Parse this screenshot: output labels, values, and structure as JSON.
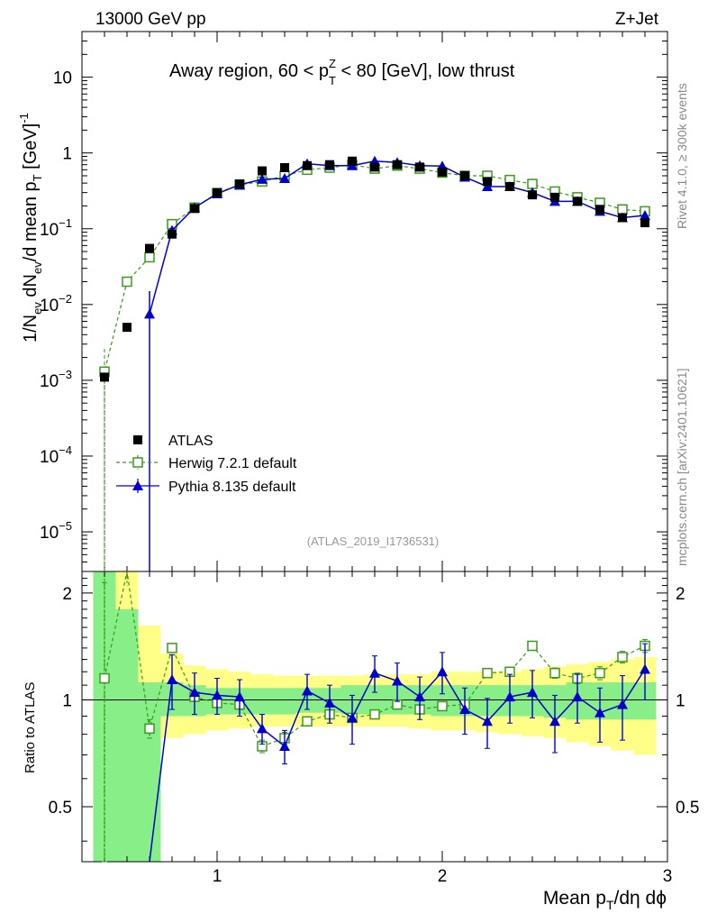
{
  "header": {
    "left": "13000 GeV pp",
    "right": "Z+Jet"
  },
  "side_labels": {
    "rivet": "Rivet 4.1.0, ≥ 300k events",
    "mcplots": "mcplots.cern.ch [arXiv:2401.10621]"
  },
  "chart_data": {
    "type": "scatter",
    "title_parts": {
      "a": "Away region, 60 < p",
      "sup": "Z",
      "sub": "T",
      "b": " < 80 [GeV], low thrust"
    },
    "analysis_tag": "(ATLAS_2019_I1736531)",
    "xlabel_parts": {
      "a": "Mean p",
      "sub": "T",
      "b": "/dη dϕ"
    },
    "ylabel_parts": {
      "a": "1/N",
      "sub1": "ev",
      "b": " dN",
      "sub2": "ev",
      "c": "/d mean p",
      "sub3": "T",
      "d": " [GeV]",
      "sup": "-1"
    },
    "ratio_ylabel": "Ratio to ATLAS",
    "xlim": [
      0.4,
      3.0
    ],
    "ylim": [
      3e-06,
      40
    ],
    "ratio_ylim": [
      0.35,
      2.3
    ],
    "x_ticks": [
      1,
      2,
      3
    ],
    "y_ticks": [
      {
        "v": 10,
        "m": "10",
        "e": ""
      },
      {
        "v": 1,
        "m": "1",
        "e": ""
      },
      {
        "v": 0.1,
        "m": "10",
        "e": "−1"
      },
      {
        "v": 0.01,
        "m": "10",
        "e": "−2"
      },
      {
        "v": 0.001,
        "m": "10",
        "e": "−3"
      },
      {
        "v": 0.0001,
        "m": "10",
        "e": "−4"
      },
      {
        "v": 1e-05,
        "m": "10",
        "e": "−5"
      }
    ],
    "ratio_ticks": [
      {
        "v": 0.5,
        "l": "0.5"
      },
      {
        "v": 1,
        "l": "1"
      },
      {
        "v": 2,
        "l": "2"
      }
    ],
    "x": [
      0.5,
      0.6,
      0.7,
      0.8,
      0.9,
      1.0,
      1.1,
      1.2,
      1.3,
      1.4,
      1.5,
      1.6,
      1.7,
      1.8,
      1.9,
      2.0,
      2.1,
      2.2,
      2.3,
      2.4,
      2.5,
      2.6,
      2.7,
      2.8,
      2.9
    ],
    "band_inner": [
      2.3,
      1.8,
      1.12,
      1.12,
      1.1,
      1.08,
      1.08,
      1.08,
      1.08,
      1.08,
      1.08,
      1.1,
      1.1,
      1.1,
      1.1,
      1.1,
      1.1,
      1.1,
      1.1,
      1.1,
      1.1,
      1.12,
      1.12,
      1.12,
      1.12
    ],
    "band_outer": [
      2.3,
      2.3,
      1.62,
      1.35,
      1.25,
      1.22,
      1.2,
      1.18,
      1.17,
      1.17,
      1.17,
      1.17,
      1.18,
      1.18,
      1.18,
      1.2,
      1.2,
      1.2,
      1.2,
      1.22,
      1.24,
      1.26,
      1.28,
      1.3,
      1.32
    ],
    "band_inner_low": [
      0.35,
      0.35,
      0.35,
      0.9,
      0.9,
      0.91,
      0.91,
      0.91,
      0.91,
      0.92,
      0.92,
      0.91,
      0.91,
      0.91,
      0.91,
      0.9,
      0.9,
      0.9,
      0.9,
      0.9,
      0.89,
      0.88,
      0.88,
      0.88,
      0.88
    ],
    "band_outer_low": [
      0.35,
      0.35,
      0.35,
      0.78,
      0.8,
      0.82,
      0.83,
      0.84,
      0.84,
      0.84,
      0.84,
      0.84,
      0.84,
      0.84,
      0.83,
      0.82,
      0.82,
      0.81,
      0.8,
      0.79,
      0.78,
      0.76,
      0.74,
      0.72,
      0.7
    ],
    "series": [
      {
        "name": "ATLAS",
        "color": "#000000",
        "marker": "square",
        "values": [
          0.0011,
          0.005,
          0.055,
          0.085,
          0.185,
          0.3,
          0.39,
          0.58,
          0.64,
          0.68,
          0.7,
          0.78,
          0.65,
          0.7,
          0.65,
          0.56,
          0.5,
          0.42,
          0.36,
          0.28,
          0.26,
          0.23,
          0.18,
          0.14,
          0.12
        ]
      },
      {
        "name": "Herwig 7.2.1 default",
        "color": "#3a9a1a",
        "marker": "open-square",
        "values": [
          0.0013,
          0.02,
          0.042,
          0.115,
          0.19,
          0.295,
          0.38,
          0.42,
          0.5,
          0.6,
          0.64,
          0.7,
          0.62,
          0.68,
          0.62,
          0.55,
          0.5,
          0.5,
          0.44,
          0.39,
          0.31,
          0.26,
          0.22,
          0.18,
          0.17
        ],
        "ratio": [
          1.15,
          2.3,
          0.83,
          1.4,
          1.02,
          0.98,
          0.97,
          0.74,
          0.78,
          0.87,
          0.91,
          0.89,
          0.91,
          0.97,
          0.94,
          0.96,
          0.97,
          1.19,
          1.2,
          1.42,
          1.19,
          1.15,
          1.19,
          1.32,
          1.42
        ],
        "ratio_err": [
          0.99,
          0.0,
          0.05,
          0.04,
          0.03,
          0.02,
          0.02,
          0.03,
          0.03,
          0.02,
          0.02,
          0.02,
          0.02,
          0.02,
          0.02,
          0.02,
          0.02,
          0.03,
          0.03,
          0.04,
          0.04,
          0.04,
          0.05,
          0.05,
          0.06
        ]
      },
      {
        "name": "Pythia 8.135 default",
        "color": "#0000cc",
        "marker": "triangle",
        "values": [
          null,
          null,
          0.0075,
          0.095,
          0.19,
          0.29,
          0.38,
          0.45,
          0.46,
          0.72,
          0.68,
          0.68,
          0.78,
          0.75,
          0.68,
          0.67,
          0.48,
          0.36,
          0.36,
          0.3,
          0.23,
          0.23,
          0.17,
          0.14,
          0.15
        ],
        "ratio": [
          null,
          null,
          0.14,
          1.14,
          1.05,
          1.03,
          1.02,
          0.83,
          0.74,
          1.06,
          0.98,
          0.89,
          1.19,
          1.13,
          1.02,
          1.2,
          0.94,
          0.87,
          1.02,
          1.05,
          0.87,
          1.02,
          0.92,
          0.97,
          1.22
        ],
        "ratio_err": [
          0,
          0,
          0.0,
          0.2,
          0.14,
          0.12,
          0.12,
          0.08,
          0.08,
          0.12,
          0.12,
          0.14,
          0.14,
          0.14,
          0.14,
          0.16,
          0.14,
          0.14,
          0.16,
          0.16,
          0.16,
          0.16,
          0.16,
          0.2,
          0.22
        ]
      }
    ]
  }
}
